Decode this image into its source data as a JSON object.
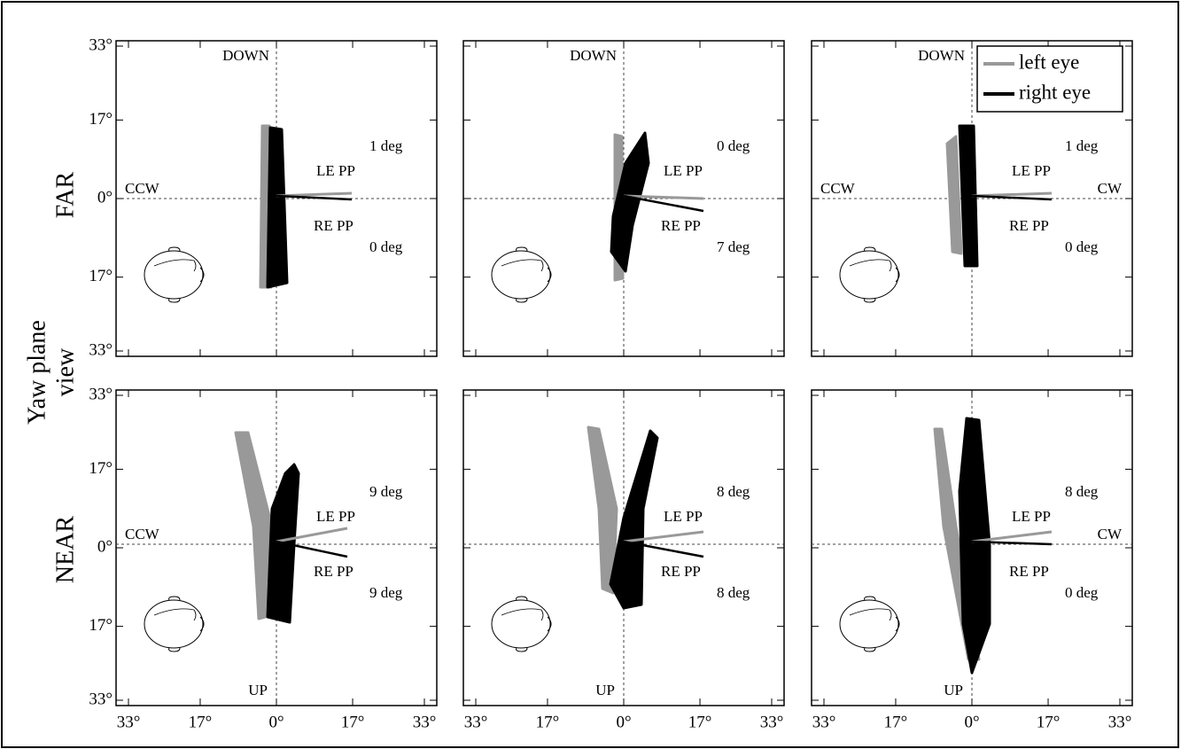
{
  "figure": {
    "y_title": [
      "Yaw plane",
      "view"
    ],
    "rows": [
      "FAR",
      "NEAR"
    ],
    "ticks": [
      {
        "value": -33,
        "label": "33°"
      },
      {
        "value": -17,
        "label": "17°"
      },
      {
        "value": 0,
        "label": "0°"
      },
      {
        "value": 17,
        "label": "17°"
      },
      {
        "value": 33,
        "label": "33°"
      }
    ],
    "legend": [
      {
        "name": "left eye",
        "color": "#999999"
      },
      {
        "name": "right eye",
        "color": "#000000"
      }
    ],
    "panels": [
      {
        "top": "DOWN",
        "left": "CCW",
        "le": "LE PP",
        "re": "RE PP",
        "le_angle": "1 deg",
        "re_angle": "0 deg"
      },
      {
        "top": "DOWN",
        "le": "LE PP",
        "re": "RE PP",
        "le_angle": "0 deg",
        "re_angle": "7 deg"
      },
      {
        "top": "DOWN",
        "left": "CCW",
        "right": "CW",
        "le": "LE PP",
        "re": "RE PP",
        "le_angle": "1 deg",
        "re_angle": "0 deg"
      },
      {
        "left": "CCW",
        "bottom": "UP",
        "le": "LE PP",
        "re": "RE PP",
        "le_angle": "9 deg",
        "re_angle": "9 deg"
      },
      {
        "bottom": "UP",
        "le": "LE PP",
        "re": "RE PP",
        "le_angle": "8 deg",
        "re_angle": "8 deg"
      },
      {
        "right": "CW",
        "bottom": "UP",
        "le": "LE PP",
        "re": "RE PP",
        "le_angle": "8 deg",
        "re_angle": "0 deg"
      }
    ]
  }
}
